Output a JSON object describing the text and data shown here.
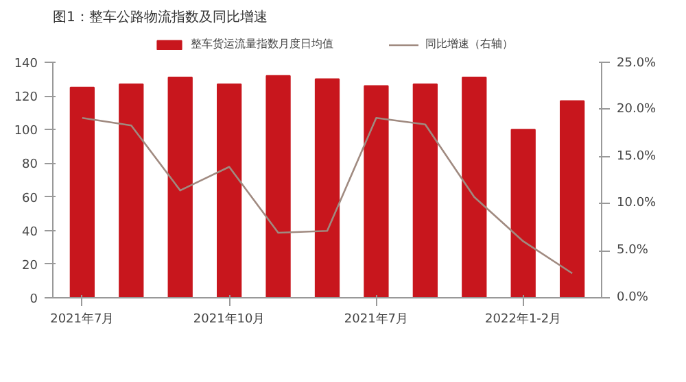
{
  "chart_data": {
    "type": "bar",
    "title": "图1：整车公路物流指数及同比增速",
    "categories": [
      "2021年7月",
      null,
      null,
      "2021年10月",
      null,
      null,
      "2021年7月",
      null,
      null,
      "2022年1-2月",
      null
    ],
    "series": [
      {
        "name": "整车货运流量指数月度日均值",
        "type": "bar",
        "color": "#c8161d",
        "values": [
          125,
          127,
          131,
          127,
          132,
          130,
          126,
          127,
          131,
          100,
          117
        ]
      },
      {
        "name": "同比增速（右轴）",
        "type": "line",
        "axis": "y2",
        "color": "#a08a80",
        "values": [
          19.1,
          18.3,
          11.4,
          13.9,
          6.9,
          7.1,
          19.1,
          18.4,
          10.7,
          6.0,
          2.6
        ]
      }
    ],
    "ylim": [
      0,
      140
    ],
    "yticks": [
      0,
      20,
      40,
      60,
      80,
      100,
      120,
      140
    ],
    "y2lim": [
      0,
      25
    ],
    "y2ticks": [
      {
        "value": 0,
        "label": "0.0%"
      },
      {
        "value": 5,
        "label": "5.0%"
      },
      {
        "value": 10,
        "label": "10.0%"
      },
      {
        "value": 15,
        "label": "15.0%"
      },
      {
        "value": 20,
        "label": "20.0%"
      },
      {
        "value": 25,
        "label": "25.0%"
      }
    ],
    "grid": false,
    "legend": "top",
    "marker": "none",
    "line_style": "solid"
  }
}
